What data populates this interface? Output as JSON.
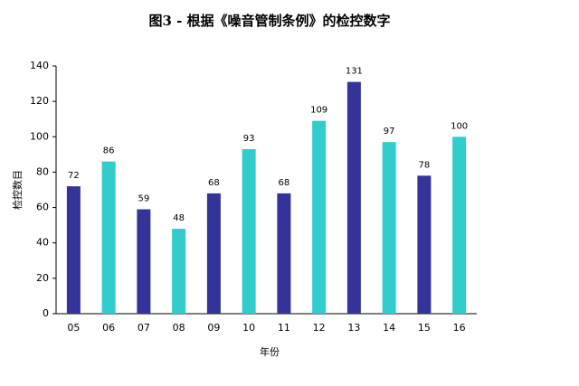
{
  "chart_data": {
    "type": "bar",
    "title": "图3 - 根据《噪音管制条例》的检控数字",
    "x_label": "年份",
    "y_label": "检控数目",
    "categories": [
      "05",
      "06",
      "07",
      "08",
      "09",
      "10",
      "11",
      "12",
      "13",
      "14",
      "15",
      "16"
    ],
    "values": [
      72,
      86,
      59,
      48,
      68,
      93,
      68,
      109,
      131,
      97,
      78,
      100
    ],
    "colors": [
      "#333399",
      "#33cccc",
      "#333399",
      "#33cccc",
      "#333399",
      "#33cccc",
      "#333399",
      "#33cccc",
      "#333399",
      "#33cccc",
      "#333399",
      "#33cccc"
    ],
    "ylim": [
      0,
      140
    ],
    "yticks": [
      0,
      20,
      40,
      60,
      80,
      100,
      120,
      140
    ],
    "grid": false
  }
}
